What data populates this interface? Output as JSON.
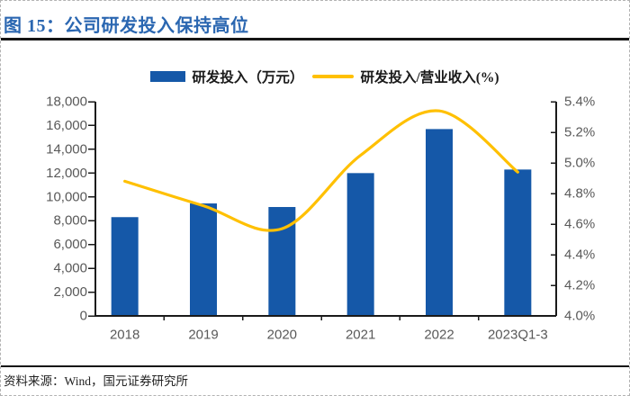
{
  "figure": {
    "title": "图 15：公司研发投入保持高位",
    "source": "资料来源：Wind，国元证券研究所"
  },
  "legend": {
    "bar_label": "研发投入（万元）",
    "line_label": "研发投入/营业收入(%)"
  },
  "colors": {
    "bar_blue": "#1558A8",
    "line_yellow": "#FFC000",
    "title_blue": "#2B67B1",
    "axis_text_gray": "#595959",
    "axis_line": "#1a1a1a",
    "rule_black": "#151515",
    "border_dash_gray": "#b3b3b3",
    "source_text": "#222222"
  },
  "chart_data": {
    "type": "bar",
    "subtype": "combo-bar-line",
    "title": "公司研发投入保持高位",
    "categories": [
      "2018",
      "2019",
      "2020",
      "2021",
      "2022",
      "2023Q1-3"
    ],
    "series": [
      {
        "name": "研发投入（万元）",
        "type": "bar",
        "axis": "left",
        "color": "#1558A8",
        "values": [
          8300,
          9450,
          9150,
          12000,
          15700,
          12300
        ]
      },
      {
        "name": "研发投入/营业收入(%)",
        "type": "line",
        "axis": "right",
        "color": "#FFC000",
        "smooth": true,
        "values": [
          4.88,
          4.72,
          4.57,
          5.05,
          5.34,
          4.94
        ]
      }
    ],
    "left_axis": {
      "min": 0,
      "max": 18000,
      "step": 2000,
      "tick_labels": [
        "0",
        "2,000",
        "4,000",
        "6,000",
        "8,000",
        "10,000",
        "12,000",
        "14,000",
        "16,000",
        "18,000"
      ]
    },
    "right_axis": {
      "min": 4.0,
      "max": 5.4,
      "step": 0.2,
      "tick_labels": [
        "4.0%",
        "4.2%",
        "4.4%",
        "4.6%",
        "4.8%",
        "5.0%",
        "5.2%",
        "5.4%"
      ]
    },
    "grid": false,
    "legend_position": "top"
  }
}
